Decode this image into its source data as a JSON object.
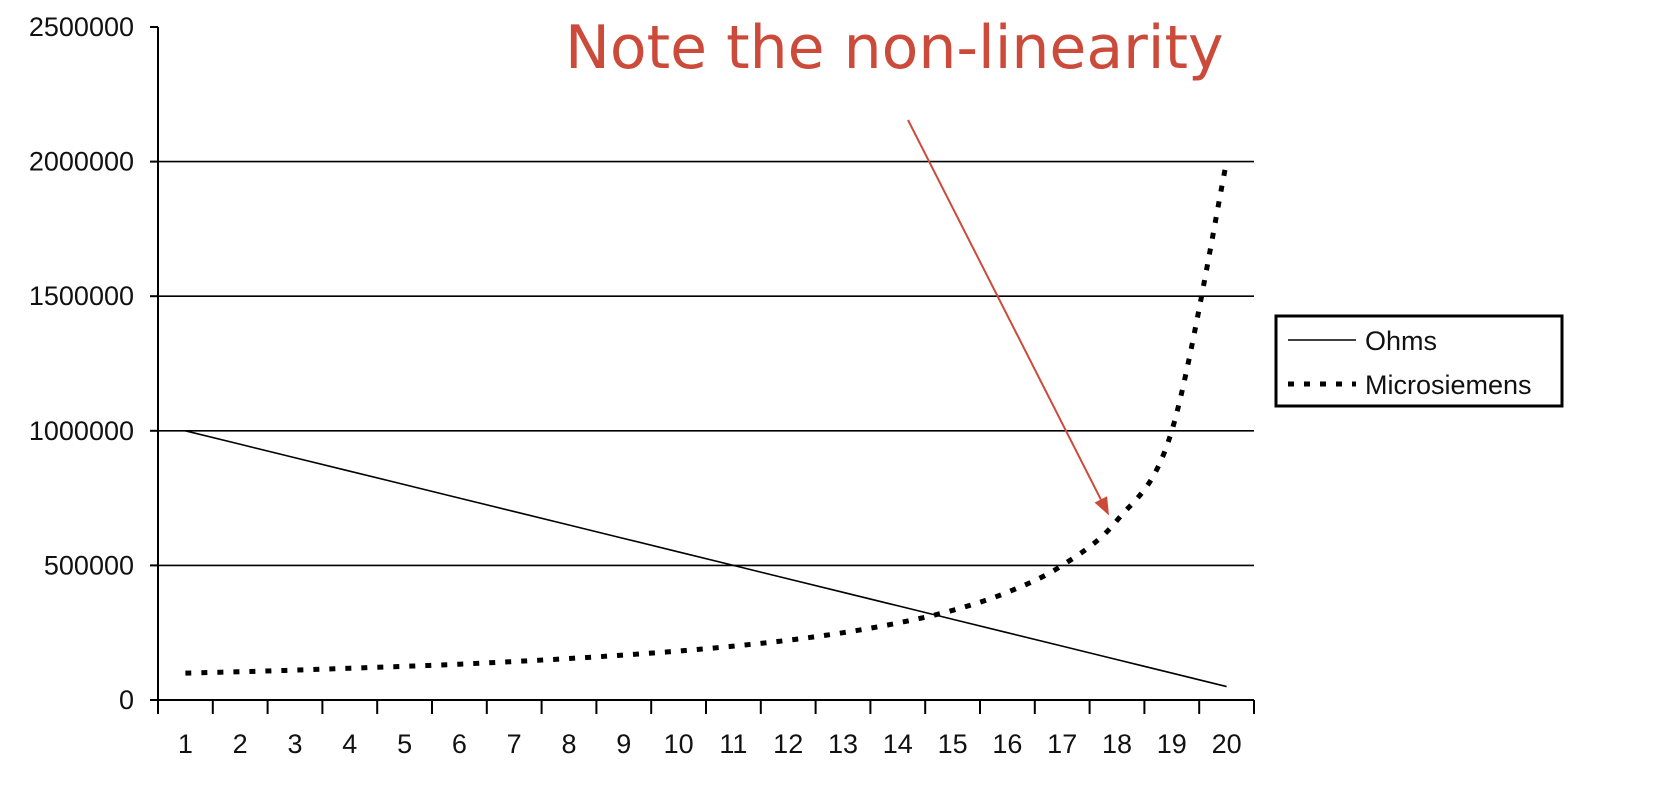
{
  "chart_data": {
    "type": "line",
    "x": [
      1,
      2,
      3,
      4,
      5,
      6,
      7,
      8,
      9,
      10,
      11,
      12,
      13,
      14,
      15,
      16,
      17,
      18,
      19,
      20
    ],
    "series": [
      {
        "name": "Ohms",
        "style": "solid",
        "color": "#000000",
        "values": [
          1000000,
          950000,
          900000,
          850000,
          800000,
          750000,
          700000,
          650000,
          600000,
          550000,
          500000,
          450000,
          400000,
          350000,
          300000,
          250000,
          200000,
          150000,
          100000,
          50000
        ]
      },
      {
        "name": "Microsiemens",
        "style": "dotted",
        "color": "#000000",
        "values": [
          100000,
          105000,
          111000,
          118000,
          125000,
          133000,
          143000,
          154000,
          167000,
          182000,
          200000,
          222000,
          250000,
          286000,
          333000,
          400000,
          500000,
          667000,
          1000000,
          2000000
        ]
      }
    ],
    "ylim": [
      0,
      2500000
    ],
    "yticks": [
      "0",
      "500000",
      "1000000",
      "1500000",
      "2000000",
      "2500000"
    ],
    "xticks": [
      "1",
      "2",
      "3",
      "4",
      "5",
      "6",
      "7",
      "8",
      "9",
      "10",
      "11",
      "12",
      "13",
      "14",
      "15",
      "16",
      "17",
      "18",
      "19",
      "20"
    ],
    "grid": "horizontal",
    "legend": "right",
    "annotation": {
      "text": "Note the non-linearity",
      "color": "#cc4a3a",
      "points_to_x": 18
    }
  }
}
